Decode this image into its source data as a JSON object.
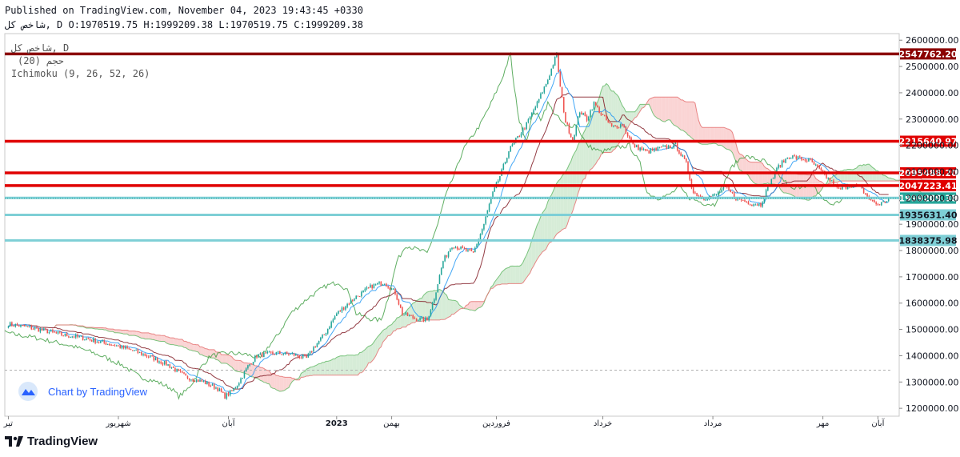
{
  "header": {
    "published": "Published on TradingView.com, November 04, 2023 19:43:45 +0330",
    "symbol_line": "شاخص کل, D O:1970519.75 H:1999209.38 L:1970519.75 C:1999209.38"
  },
  "legend": {
    "symbol": "شاخص کل, D",
    "volume": "حجم (20)",
    "ichimoku": "Ichimoku (9, 26, 52, 26)"
  },
  "watermark": "Chart by TradingView",
  "brand": "TradingView",
  "colors": {
    "up": "#26a69a",
    "down": "#ef5350",
    "red_line": "#e00000",
    "dark_red_line": "#8b0000",
    "cyan_line": "#7ecfd6",
    "cloud_green": "#c8e6c9",
    "cloud_red": "#f8c5c5",
    "tenkan": "#2196f3",
    "kijun": "#801922",
    "lagging": "#43a047",
    "span_a": "#66bb6a",
    "span_b": "#e57373"
  },
  "chart_data": {
    "type": "candlestick",
    "title": "شاخص کل, D",
    "ylim": [
      1170000,
      2625000
    ],
    "y_ticks": [
      {
        "value": 1200000,
        "label": "1200000.00"
      },
      {
        "value": 1300000,
        "label": "1300000.00"
      },
      {
        "value": 1400000,
        "label": "1400000.00"
      },
      {
        "value": 1500000,
        "label": "1500000.00"
      },
      {
        "value": 1600000,
        "label": "1600000.00"
      },
      {
        "value": 1700000,
        "label": "1700000.00"
      },
      {
        "value": 1800000,
        "label": "1800000.00"
      },
      {
        "value": 1900000,
        "label": "1900000.00"
      },
      {
        "value": 2000000,
        "label": "2000000.00"
      },
      {
        "value": 2100000,
        "label": "2100000.00"
      },
      {
        "value": 2200000,
        "label": "2200000.00"
      },
      {
        "value": 2300000,
        "label": "2300000.00"
      },
      {
        "value": 2400000,
        "label": "2400000.00"
      },
      {
        "value": 2500000,
        "label": "2500000.00"
      },
      {
        "value": 2600000,
        "label": "2600000.00"
      }
    ],
    "x_ticks": [
      {
        "day": 0,
        "label": "تیر"
      },
      {
        "day": 62,
        "label": "شهریور"
      },
      {
        "day": 124,
        "label": "آبان"
      },
      {
        "day": 185,
        "label": "2023"
      },
      {
        "day": 216,
        "label": "بهمن"
      },
      {
        "day": 275,
        "label": "فروردین"
      },
      {
        "day": 335,
        "label": "خرداد"
      },
      {
        "day": 397,
        "label": "مرداد"
      },
      {
        "day": 459,
        "label": "مهر"
      },
      {
        "day": 490,
        "label": "آبان"
      }
    ],
    "x_domain_days": [
      -2,
      502
    ],
    "dashed_level": 1345000,
    "horizontal_levels": [
      {
        "value": 2547762.2,
        "label": "2547762.20",
        "kind": "dark_red"
      },
      {
        "value": 2215640.97,
        "label": "2215640.97",
        "kind": "red"
      },
      {
        "value": 2095488.2,
        "label": "2095488.20",
        "kind": "red"
      },
      {
        "value": 2047223.41,
        "label": "2047223.41",
        "kind": "red"
      },
      {
        "value": 2000092.64,
        "label": "2000092.64",
        "kind": "cyan"
      },
      {
        "value": 1935631.4,
        "label": "1935631.40",
        "kind": "cyan"
      },
      {
        "value": 1838375.98,
        "label": "1838375.98",
        "kind": "cyan"
      }
    ],
    "current_price": {
      "value": 1999209.38,
      "label": "1999209.38"
    },
    "close_anchors": [
      [
        0,
        1520000
      ],
      [
        10,
        1510000
      ],
      [
        20,
        1495000
      ],
      [
        30,
        1480000
      ],
      [
        40,
        1470000
      ],
      [
        50,
        1455000
      ],
      [
        60,
        1440000
      ],
      [
        70,
        1420000
      ],
      [
        80,
        1395000
      ],
      [
        90,
        1365000
      ],
      [
        100,
        1320000
      ],
      [
        110,
        1300000
      ],
      [
        118,
        1275000
      ],
      [
        122,
        1245000
      ],
      [
        126,
        1265000
      ],
      [
        130,
        1300000
      ],
      [
        135,
        1360000
      ],
      [
        140,
        1400000
      ],
      [
        150,
        1410000
      ],
      [
        160,
        1405000
      ],
      [
        168,
        1390000
      ],
      [
        172,
        1430000
      ],
      [
        178,
        1480000
      ],
      [
        185,
        1560000
      ],
      [
        195,
        1620000
      ],
      [
        205,
        1665000
      ],
      [
        212,
        1680000
      ],
      [
        218,
        1640000
      ],
      [
        222,
        1560000
      ],
      [
        230,
        1540000
      ],
      [
        236,
        1535000
      ],
      [
        240,
        1620000
      ],
      [
        245,
        1760000
      ],
      [
        250,
        1820000
      ],
      [
        258,
        1800000
      ],
      [
        262,
        1790000
      ],
      [
        268,
        1900000
      ],
      [
        272,
        2000000
      ],
      [
        278,
        2100000
      ],
      [
        282,
        2180000
      ],
      [
        286,
        2220000
      ],
      [
        292,
        2280000
      ],
      [
        298,
        2360000
      ],
      [
        304,
        2450000
      ],
      [
        308,
        2530000
      ],
      [
        309,
        2545000
      ],
      [
        311,
        2420000
      ],
      [
        314,
        2290000
      ],
      [
        318,
        2220000
      ],
      [
        322,
        2330000
      ],
      [
        326,
        2300000
      ],
      [
        330,
        2360000
      ],
      [
        334,
        2320000
      ],
      [
        340,
        2270000
      ],
      [
        346,
        2280000
      ],
      [
        352,
        2200000
      ],
      [
        360,
        2175000
      ],
      [
        368,
        2190000
      ],
      [
        376,
        2200000
      ],
      [
        382,
        2130000
      ],
      [
        386,
        2020000
      ],
      [
        392,
        2000000
      ],
      [
        398,
        2010000
      ],
      [
        404,
        2040000
      ],
      [
        410,
        2000000
      ],
      [
        418,
        1980000
      ],
      [
        424,
        1975000
      ],
      [
        428,
        2040000
      ],
      [
        434,
        2120000
      ],
      [
        440,
        2160000
      ],
      [
        446,
        2150000
      ],
      [
        452,
        2140000
      ],
      [
        458,
        2100000
      ],
      [
        464,
        2060000
      ],
      [
        468,
        2030000
      ],
      [
        474,
        2050000
      ],
      [
        480,
        2040000
      ],
      [
        486,
        1990000
      ],
      [
        490,
        1975000
      ],
      [
        494,
        1985000
      ],
      [
        496,
        1999209
      ]
    ],
    "volatility": 9000
  }
}
